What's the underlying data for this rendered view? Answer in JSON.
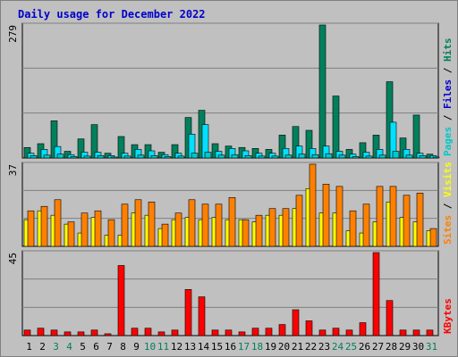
{
  "title": "Daily usage for December 2022",
  "colors": {
    "background": "#c0c0c0",
    "title": "#0000cc",
    "hits": "#00805c",
    "files": "#00e0ff",
    "pages": "#00c8c8",
    "visits": "#ffff00",
    "sites": "#ff8000",
    "kbytes": "#ff0000",
    "separator": "#000000",
    "weekend_label": "#00805c"
  },
  "chart_data": [
    {
      "type": "bar",
      "name": "hits-files-pages",
      "ylim": [
        0,
        279
      ],
      "max_label": "279",
      "legend": [
        {
          "label": "Pages",
          "color": "#00c8c8"
        },
        {
          "label": "Files",
          "color": "#0000cc"
        },
        {
          "label": "Hits",
          "color": "#00805c"
        }
      ],
      "separator": " / ",
      "x": [
        "1",
        "2",
        "3",
        "4",
        "5",
        "6",
        "7",
        "8",
        "9",
        "10",
        "11",
        "12",
        "13",
        "14",
        "15",
        "16",
        "17",
        "18",
        "19",
        "20",
        "21",
        "22",
        "23",
        "24",
        "25",
        "26",
        "27",
        "28",
        "29",
        "30",
        "31"
      ],
      "series": [
        {
          "name": "Hits",
          "color": "#00805c",
          "values": [
            22,
            30,
            78,
            14,
            40,
            70,
            10,
            45,
            28,
            28,
            12,
            28,
            85,
            100,
            30,
            25,
            22,
            20,
            18,
            48,
            66,
            58,
            279,
            130,
            18,
            32,
            48,
            160,
            42,
            90,
            8
          ]
        },
        {
          "name": "Files",
          "color": "#00e0ff",
          "values": [
            10,
            18,
            24,
            7,
            12,
            12,
            5,
            10,
            18,
            15,
            7,
            10,
            50,
            70,
            14,
            20,
            15,
            10,
            10,
            20,
            25,
            20,
            25,
            14,
            8,
            12,
            18,
            75,
            18,
            10,
            5
          ]
        },
        {
          "name": "Pages",
          "color": "#00c8c8",
          "values": [
            5,
            6,
            8,
            3,
            4,
            5,
            2,
            4,
            6,
            5,
            3,
            4,
            10,
            12,
            6,
            7,
            5,
            4,
            4,
            6,
            8,
            7,
            9,
            6,
            3,
            4,
            6,
            14,
            6,
            5,
            2
          ]
        }
      ]
    },
    {
      "type": "bar",
      "name": "visits-sites",
      "ylim": [
        0,
        37
      ],
      "max_label": "37",
      "legend": [
        {
          "label": "Sites",
          "color": "#ff8000"
        },
        {
          "label": "Visits",
          "color": "#ffff00"
        }
      ],
      "separator": " / ",
      "x": [
        "1",
        "2",
        "3",
        "4",
        "5",
        "6",
        "7",
        "8",
        "9",
        "10",
        "11",
        "12",
        "13",
        "14",
        "15",
        "16",
        "17",
        "18",
        "19",
        "20",
        "21",
        "22",
        "23",
        "24",
        "25",
        "26",
        "27",
        "28",
        "29",
        "30",
        "31"
      ],
      "series": [
        {
          "name": "Visits",
          "color": "#ffff00",
          "values": [
            12,
            16,
            14,
            10,
            6,
            13,
            5,
            5,
            15,
            14,
            8,
            12,
            13,
            12,
            13,
            12,
            12,
            11,
            14,
            14,
            17,
            26,
            15,
            15,
            7,
            6,
            11,
            20,
            13,
            11,
            7
          ]
        },
        {
          "name": "Sites",
          "color": "#ff8000",
          "values": [
            16,
            18,
            21,
            11,
            15,
            16,
            12,
            19,
            21,
            20,
            10,
            15,
            21,
            19,
            19,
            22,
            12,
            14,
            17,
            17,
            23,
            37,
            28,
            27,
            16,
            19,
            27,
            27,
            23,
            24,
            8
          ]
        }
      ]
    },
    {
      "type": "bar",
      "name": "kbytes",
      "ylim": [
        0,
        45
      ],
      "max_label": "45",
      "legend": [
        {
          "label": "KBytes",
          "color": "#ff0000"
        }
      ],
      "separator": "",
      "x": [
        "1",
        "2",
        "3",
        "4",
        "5",
        "6",
        "7",
        "8",
        "9",
        "10",
        "11",
        "12",
        "13",
        "14",
        "15",
        "16",
        "17",
        "18",
        "19",
        "20",
        "21",
        "22",
        "23",
        "24",
        "25",
        "26",
        "27",
        "28",
        "29",
        "30",
        "31"
      ],
      "series": [
        {
          "name": "KBytes",
          "color": "#ff0000",
          "values": [
            3,
            4,
            3,
            2,
            2,
            3,
            1,
            38,
            4,
            4,
            2,
            3,
            25,
            21,
            3,
            3,
            2,
            4,
            4,
            6,
            14,
            8,
            3,
            4,
            3,
            7,
            45,
            19,
            3,
            3,
            3
          ]
        }
      ]
    }
  ],
  "x_labels": [
    {
      "label": "1",
      "weekend": false
    },
    {
      "label": "2",
      "weekend": false
    },
    {
      "label": "3",
      "weekend": true
    },
    {
      "label": "4",
      "weekend": true
    },
    {
      "label": "5",
      "weekend": false
    },
    {
      "label": "6",
      "weekend": false
    },
    {
      "label": "7",
      "weekend": false
    },
    {
      "label": "8",
      "weekend": false
    },
    {
      "label": "9",
      "weekend": false
    },
    {
      "label": "10",
      "weekend": true
    },
    {
      "label": "11",
      "weekend": true
    },
    {
      "label": "12",
      "weekend": false
    },
    {
      "label": "13",
      "weekend": false
    },
    {
      "label": "14",
      "weekend": false
    },
    {
      "label": "15",
      "weekend": false
    },
    {
      "label": "16",
      "weekend": false
    },
    {
      "label": "17",
      "weekend": true
    },
    {
      "label": "18",
      "weekend": true
    },
    {
      "label": "19",
      "weekend": false
    },
    {
      "label": "20",
      "weekend": false
    },
    {
      "label": "21",
      "weekend": false
    },
    {
      "label": "22",
      "weekend": false
    },
    {
      "label": "23",
      "weekend": false
    },
    {
      "label": "24",
      "weekend": true
    },
    {
      "label": "25",
      "weekend": true
    },
    {
      "label": "26",
      "weekend": false
    },
    {
      "label": "27",
      "weekend": false
    },
    {
      "label": "28",
      "weekend": false
    },
    {
      "label": "29",
      "weekend": false
    },
    {
      "label": "30",
      "weekend": false
    },
    {
      "label": "31",
      "weekend": true
    }
  ]
}
